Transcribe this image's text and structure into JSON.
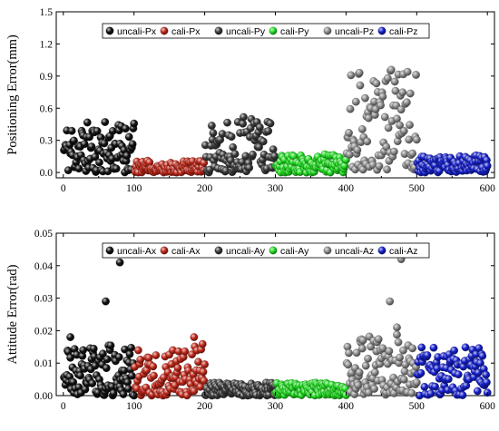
{
  "chart_data": [
    {
      "type": "scatter",
      "title": "",
      "ylabel": "Positioning Error(mm)",
      "xlabel": "",
      "xlim": [
        -10,
        610
      ],
      "ylim": [
        -0.05,
        1.5
      ],
      "xticks": [
        0,
        100,
        200,
        300,
        400,
        500,
        600
      ],
      "xtick_labels": [
        "0",
        "100",
        "200",
        "300",
        "400",
        "500",
        "600"
      ],
      "yticks": [
        0.0,
        0.3,
        0.6,
        0.9,
        1.2,
        1.5
      ],
      "ytick_labels": [
        "0.0",
        "0.3",
        "0.6",
        "0.9",
        "1.2",
        "1.5"
      ],
      "legend_position": "top",
      "series": [
        {
          "name": "uncali-Px",
          "color": "#111111",
          "x_range": [
            1,
            100
          ],
          "y_range": [
            0.0,
            0.48
          ],
          "count": 100,
          "seed": 11
        },
        {
          "name": "cali-Px",
          "color": "#c0281a",
          "x_range": [
            101,
            200
          ],
          "y_range": [
            0.0,
            0.11
          ],
          "count": 100,
          "seed": 12
        },
        {
          "name": "uncali-Py",
          "color": "#3a3a3a",
          "x_range": [
            201,
            300
          ],
          "y_range": [
            0.0,
            0.52
          ],
          "count": 100,
          "seed": 13
        },
        {
          "name": "cali-Py",
          "color": "#22dd22",
          "x_range": [
            301,
            400
          ],
          "y_range": [
            0.0,
            0.17
          ],
          "count": 100,
          "seed": 14
        },
        {
          "name": "uncali-Pz",
          "color": "#8c8c8c",
          "x_range": [
            401,
            500
          ],
          "y_range": [
            0.02,
            0.98
          ],
          "count": 100,
          "seed": 15
        },
        {
          "name": "cali-Pz",
          "color": "#1520cc",
          "x_range": [
            501,
            600
          ],
          "y_range": [
            0.0,
            0.16
          ],
          "count": 100,
          "seed": 16
        }
      ]
    },
    {
      "type": "scatter",
      "title": "",
      "ylabel": "Attitude Error(rad)",
      "xlabel": "",
      "xlim": [
        -10,
        610
      ],
      "ylim": [
        0.0,
        0.05
      ],
      "xticks": [
        0,
        100,
        200,
        300,
        400,
        500,
        600
      ],
      "xtick_labels": [
        "0",
        "100",
        "200",
        "300",
        "400",
        "500",
        "600"
      ],
      "yticks": [
        0.0,
        0.01,
        0.02,
        0.03,
        0.04,
        0.05
      ],
      "ytick_labels": [
        "0.00",
        "0.01",
        "0.02",
        "0.03",
        "0.04",
        "0.05"
      ],
      "legend_position": "top",
      "series": [
        {
          "name": "uncali-Ax",
          "color": "#111111",
          "x_range": [
            1,
            100
          ],
          "y_range": [
            0.0,
            0.016
          ],
          "count": 100,
          "seed": 21,
          "outliers": [
            [
              60,
              0.029
            ],
            [
              80,
              0.041
            ],
            [
              10,
              0.018
            ]
          ]
        },
        {
          "name": "cali-Ax",
          "color": "#c0281a",
          "x_range": [
            101,
            200
          ],
          "y_range": [
            0.0,
            0.016
          ],
          "count": 100,
          "seed": 22,
          "outliers": [
            [
              185,
              0.018
            ]
          ]
        },
        {
          "name": "uncali-Ay",
          "color": "#3a3a3a",
          "x_range": [
            201,
            300
          ],
          "y_range": [
            0.0,
            0.004
          ],
          "count": 100,
          "seed": 23
        },
        {
          "name": "cali-Ay",
          "color": "#22dd22",
          "x_range": [
            301,
            400
          ],
          "y_range": [
            0.0,
            0.004
          ],
          "count": 100,
          "seed": 24
        },
        {
          "name": "uncali-Az",
          "color": "#8c8c8c",
          "x_range": [
            401,
            500
          ],
          "y_range": [
            0.0,
            0.019
          ],
          "count": 100,
          "seed": 25,
          "outliers": [
            [
              478,
              0.042
            ],
            [
              462,
              0.029
            ],
            [
              472,
              0.021
            ]
          ]
        },
        {
          "name": "cali-Az",
          "color": "#1520cc",
          "x_range": [
            501,
            600
          ],
          "y_range": [
            0.0,
            0.015
          ],
          "count": 100,
          "seed": 26
        }
      ]
    }
  ]
}
